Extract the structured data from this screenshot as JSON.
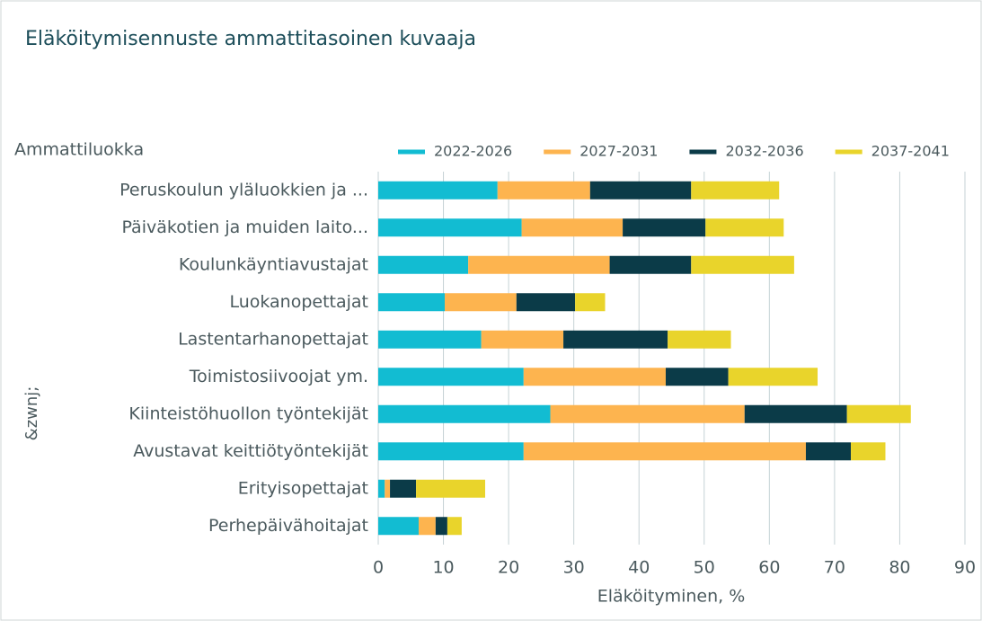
{
  "chart_data": {
    "type": "stacked_barh",
    "title": "Eläköitymisennuste ammattitasoinen kuvaaja",
    "y_title": "Ammattiluokka",
    "y_label": "&zwnj;",
    "x_label": "Eläköityminen, %",
    "categories": [
      "Peruskoulun yläluokkien ja ...",
      "Päiväkotien ja muiden laito...",
      "Koulunkäyntiavustajat",
      "Luokanopettajat",
      "Lastentarhanopettajat",
      "Toimistosiivoojat ym.",
      "Kiinteistöhuollon työntekijät",
      "Avustavat keittiötyöntekijät",
      "Erityisopettajat",
      "Perhepäivähoitajat"
    ],
    "series": [
      {
        "name": "2022-2026",
        "color": "#12bcd2",
        "values": [
          18.3,
          22.0,
          13.8,
          10.2,
          15.8,
          22.3,
          26.4,
          22.3,
          1.0,
          6.2
        ]
      },
      {
        "name": "2027-2031",
        "color": "#fdb44f",
        "values": [
          14.2,
          15.5,
          21.7,
          11.0,
          12.6,
          21.8,
          29.8,
          43.3,
          0.8,
          2.6
        ]
      },
      {
        "name": "2032-2036",
        "color": "#0b3b48",
        "values": [
          15.5,
          12.7,
          12.5,
          9.0,
          16.0,
          9.6,
          15.7,
          6.9,
          4.0,
          1.8
        ]
      },
      {
        "name": "2037-2041",
        "color": "#e9d42b",
        "values": [
          13.5,
          12.0,
          15.8,
          4.6,
          9.7,
          13.7,
          9.8,
          5.3,
          10.6,
          2.2
        ]
      }
    ],
    "xlim": [
      0,
      90
    ],
    "xticks": [
      0,
      10,
      20,
      30,
      40,
      50,
      60,
      70,
      80,
      90
    ],
    "grid": true
  }
}
